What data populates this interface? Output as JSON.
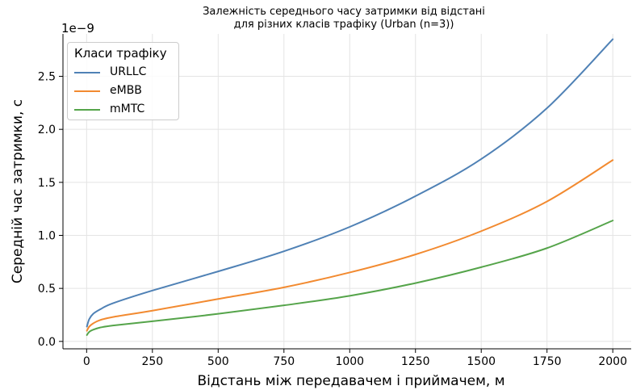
{
  "chart_data": {
    "type": "line",
    "title": "Залежність середнього часу затримки від відстані",
    "subtitle": "для різних класів трафіку (Urban (n=3))",
    "xlabel": "Відстань між передавачем і приймачем, м",
    "ylabel": "Середній час затримки, с",
    "y_scale_label": "1e−9",
    "xlim": [
      -90,
      2070
    ],
    "ylim": [
      -0.07,
      2.9
    ],
    "x_ticks": [
      0,
      250,
      500,
      750,
      1000,
      1250,
      1500,
      1750,
      2000
    ],
    "x_tick_labels": [
      "0",
      "250",
      "500",
      "750",
      "1000",
      "1250",
      "1500",
      "1750",
      "2000"
    ],
    "y_ticks": [
      0.0,
      0.5,
      1.0,
      1.5,
      2.0,
      2.5
    ],
    "y_tick_labels": [
      "0.0",
      "0.5",
      "1.0",
      "1.5",
      "2.0",
      "2.5"
    ],
    "grid": true,
    "legend": {
      "title": "Класи трафіку",
      "position": "top-left"
    },
    "x": [
      1,
      10,
      25,
      50,
      100,
      250,
      500,
      750,
      1000,
      1250,
      1500,
      1750,
      2000
    ],
    "series": [
      {
        "name": "URLLC",
        "color": "#4f81b5",
        "values": [
          0.14,
          0.21,
          0.26,
          0.3,
          0.36,
          0.48,
          0.66,
          0.85,
          1.08,
          1.37,
          1.72,
          2.2,
          2.85
        ]
      },
      {
        "name": "eMBB",
        "color": "#f28a30",
        "values": [
          0.1,
          0.14,
          0.17,
          0.2,
          0.23,
          0.29,
          0.4,
          0.51,
          0.65,
          0.82,
          1.04,
          1.32,
          1.71
        ]
      },
      {
        "name": "mMTC",
        "color": "#55a44a",
        "values": [
          0.06,
          0.09,
          0.11,
          0.13,
          0.15,
          0.19,
          0.26,
          0.34,
          0.43,
          0.55,
          0.7,
          0.88,
          1.14
        ]
      }
    ]
  }
}
